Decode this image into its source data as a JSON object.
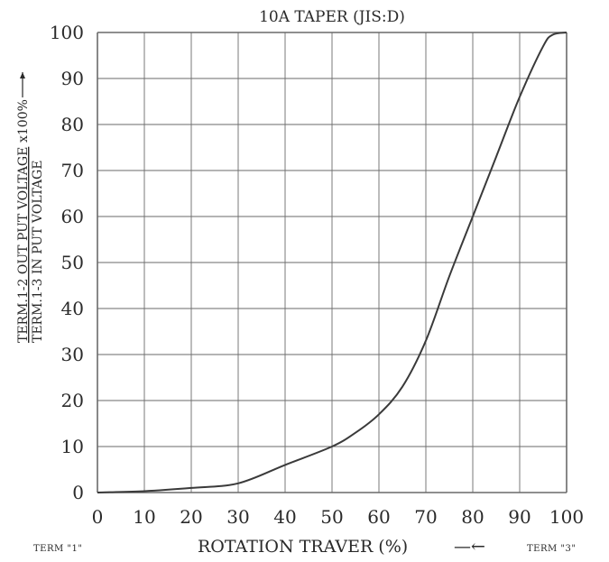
{
  "chart_data": {
    "type": "line",
    "title": "10A TAPER (JIS:D)",
    "xlabel": "ROTATION TRAVER (%)",
    "xlabel_arrow": "—←",
    "ylabel_numerator": "TERM.1-2 OUT PUT VOLTAGE",
    "ylabel_denominator": "TERM.1-3 IN PUT VOLTAGE",
    "ylabel_suffix": "x100%",
    "term_left": "TERM \"1\"",
    "term_right": "TERM \"3\"",
    "xlim": [
      0,
      100
    ],
    "ylim": [
      0,
      100
    ],
    "grid": true,
    "x_ticks": [
      "0",
      "10",
      "20",
      "30",
      "40",
      "50",
      "60",
      "70",
      "80",
      "90",
      "100"
    ],
    "y_ticks": [
      "0",
      "10",
      "20",
      "30",
      "40",
      "50",
      "60",
      "70",
      "80",
      "90",
      "100"
    ],
    "series": [
      {
        "x": [
          0,
          10,
          20,
          30,
          40,
          50,
          55,
          60,
          65,
          70,
          75,
          80,
          85,
          90,
          95,
          97,
          100
        ],
        "y": [
          0,
          0.3,
          1,
          2,
          6,
          10,
          13,
          17,
          23,
          33,
          47,
          60,
          73,
          86,
          97,
          99.5,
          100
        ]
      }
    ],
    "line_color": "#3a3a3a"
  }
}
